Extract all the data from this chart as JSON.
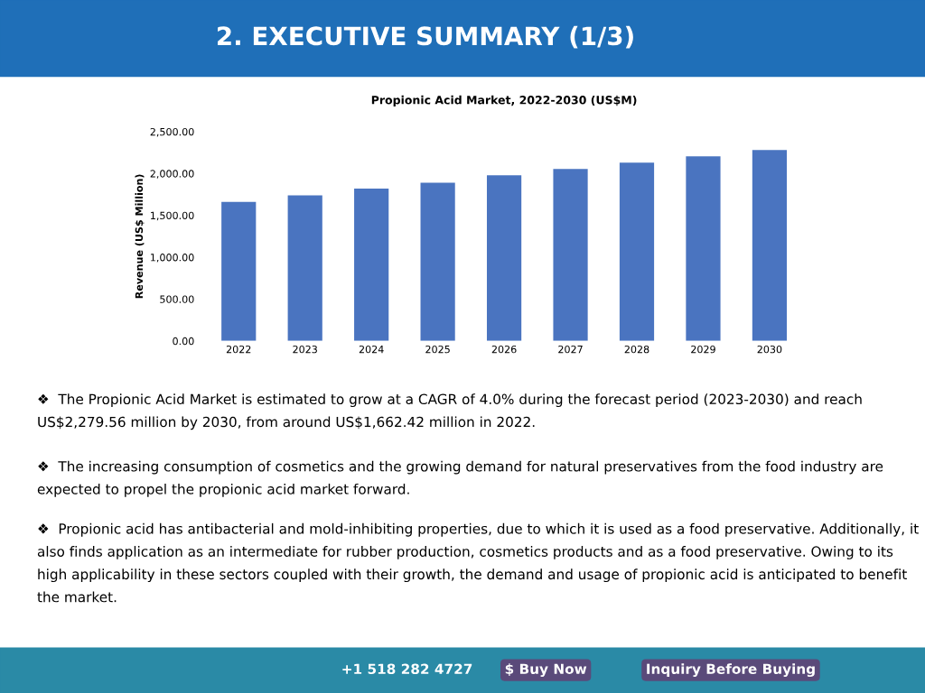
{
  "chart_data": {
    "type": "bar",
    "title": "2. EXECUTIVE SUMMARY (1/3)",
    "subtitle": "Propionic Acid Market, 2022-2030 (US$M)",
    "ylabel": "Revenue (US$ Million)",
    "categories": [
      "2022",
      "2023",
      "2024",
      "2025",
      "2026",
      "2027",
      "2028",
      "2029",
      "2030"
    ],
    "values": [
      1662.42,
      1740,
      1820,
      1890,
      1980,
      2055,
      2130,
      2205,
      2279.56
    ],
    "color": "#4a74c0",
    "ylim": [
      0,
      2500
    ],
    "yticks": [
      {
        "value": 0,
        "label": "0.00"
      },
      {
        "value": 500,
        "label": "500.00"
      },
      {
        "value": 1000,
        "label": "1,000.00"
      },
      {
        "value": 1500,
        "label": "1,500.00"
      },
      {
        "value": 2000,
        "label": "2,000.00"
      },
      {
        "value": 2500,
        "label": "2,500.00"
      }
    ],
    "grid": false,
    "annotations": [
      "❖  The Propionic Acid Market is estimated to grow at a CAGR of 4.0% during the forecast period (2023-2030) and reach US$2,279.56 million by 2030, from around US$1,662.42 million in 2022.",
      "❖  The increasing consumption of cosmetics and the growing demand for natural preservatives from the food industry are expected to propel the propionic acid market forward.",
      "❖  Propionic acid has antibacterial and mold-inhibiting properties, due to which it is used as a food preservative. Additionally, it also finds application as an intermediate for rubber production, cosmetics products and as a food preservative. Owing to its high applicability in these sectors coupled with their growth, the demand and usage of propionic acid is anticipated to benefit the market.",
      "+1 518 282 4727",
      "$ Buy Now",
      "Inquiry Before Buying"
    ]
  }
}
